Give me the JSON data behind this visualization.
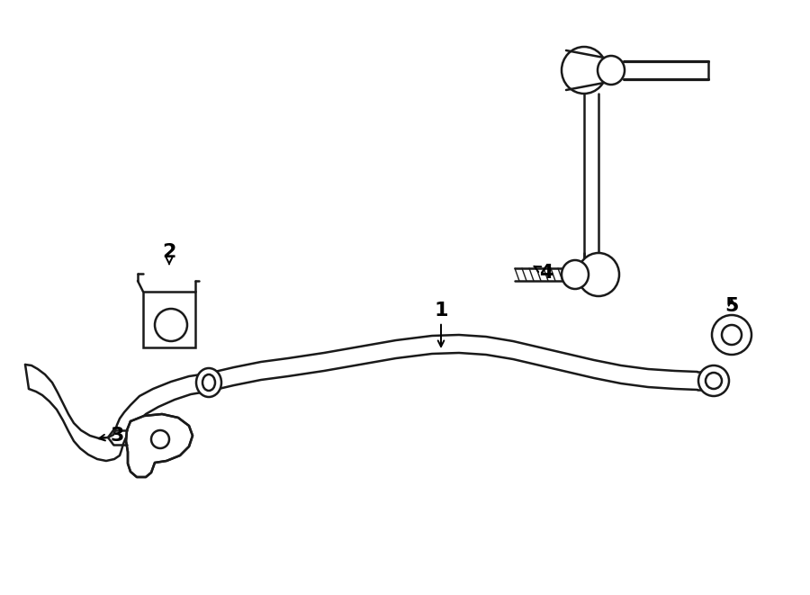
{
  "bg_color": "#ffffff",
  "line_color": "#1a1a1a",
  "line_width": 1.8,
  "fig_width": 9.0,
  "fig_height": 6.61,
  "dpi": 100
}
